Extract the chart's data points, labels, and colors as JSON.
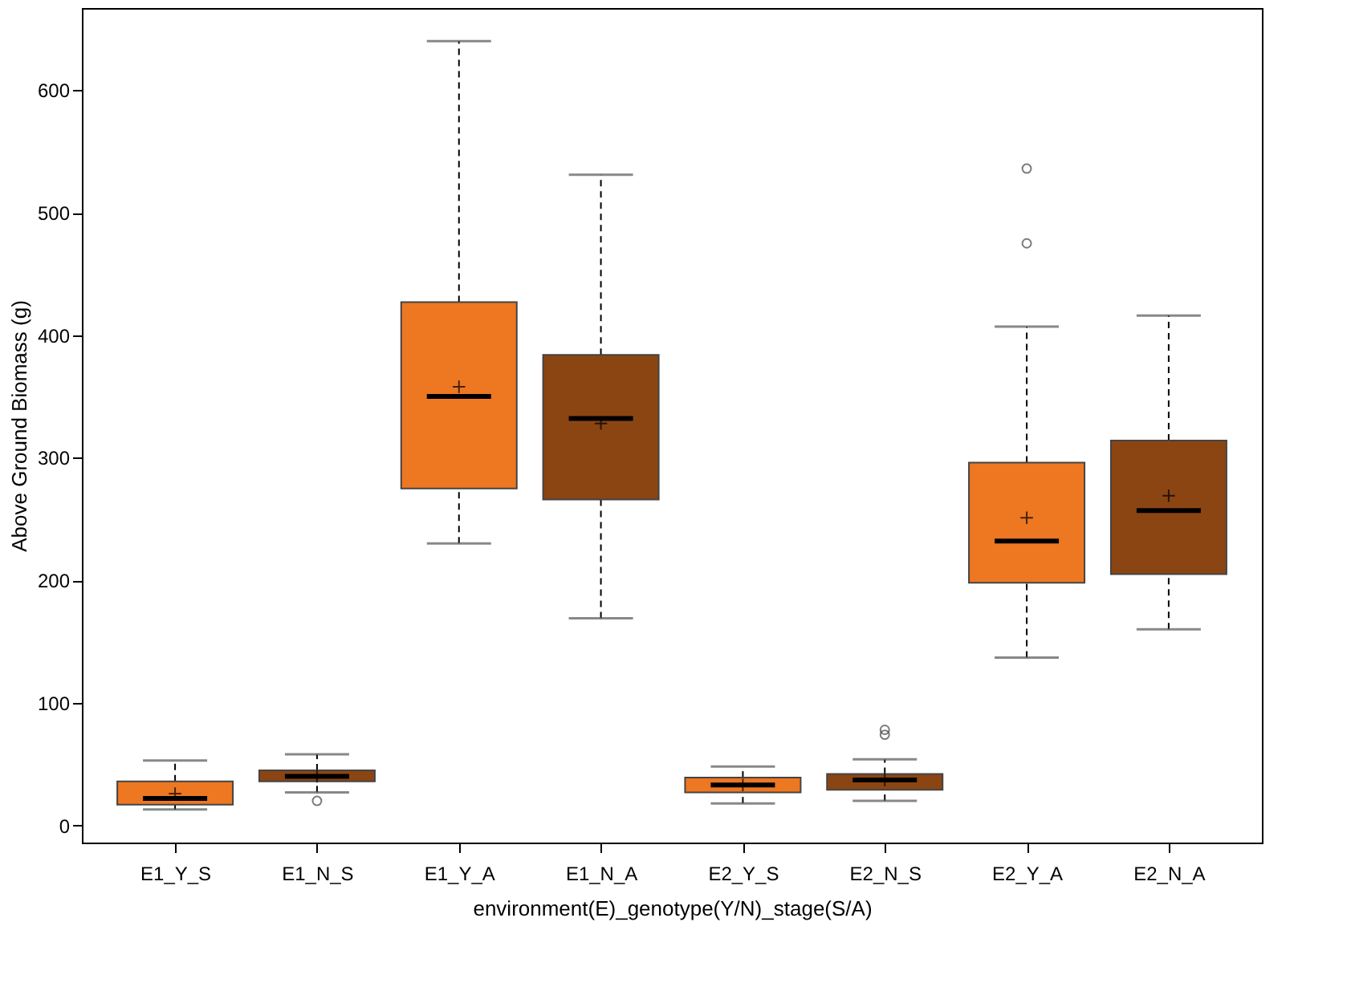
{
  "chart_data": {
    "type": "box",
    "xlabel": "environment(E)_genotype(Y/N)_stage(S/A)",
    "ylabel": "Above Ground Biomass (g)",
    "categories": [
      "E1_Y_S",
      "E1_N_S",
      "E1_Y_A",
      "E1_N_A",
      "E2_Y_S",
      "E2_N_S",
      "E2_Y_A",
      "E2_N_A"
    ],
    "colors": [
      "#ee7722",
      "#8b4513",
      "#ee7722",
      "#8b4513",
      "#ee7722",
      "#8b4513",
      "#ee7722",
      "#8b4513"
    ],
    "boxes": [
      {
        "low": 13,
        "q1": 17,
        "median": 22,
        "q3": 36,
        "high": 53,
        "mean": 26
      },
      {
        "low": 27,
        "q1": 36,
        "median": 40,
        "q3": 45,
        "high": 58,
        "mean": 40,
        "outliers": [
          20
        ]
      },
      {
        "low": 230,
        "q1": 275,
        "median": 350,
        "q3": 427,
        "high": 640,
        "mean": 358
      },
      {
        "low": 169,
        "q1": 266,
        "median": 332,
        "q3": 384,
        "high": 531,
        "mean": 328
      },
      {
        "low": 18,
        "q1": 27,
        "median": 33,
        "q3": 39,
        "high": 48,
        "mean": 33
      },
      {
        "low": 20,
        "q1": 29,
        "median": 37,
        "q3": 42,
        "high": 54,
        "mean": 37,
        "outliers": [
          74,
          78
        ]
      },
      {
        "low": 137,
        "q1": 198,
        "median": 232,
        "q3": 296,
        "high": 407,
        "mean": 251,
        "outliers": [
          475,
          536
        ]
      },
      {
        "low": 160,
        "q1": 205,
        "median": 257,
        "q3": 314,
        "high": 416,
        "mean": 269
      }
    ],
    "ylim": [
      -14,
      667
    ],
    "yticks": [
      0,
      100,
      200,
      300,
      400,
      500,
      600
    ],
    "grid": false,
    "line_style": "dashed"
  }
}
